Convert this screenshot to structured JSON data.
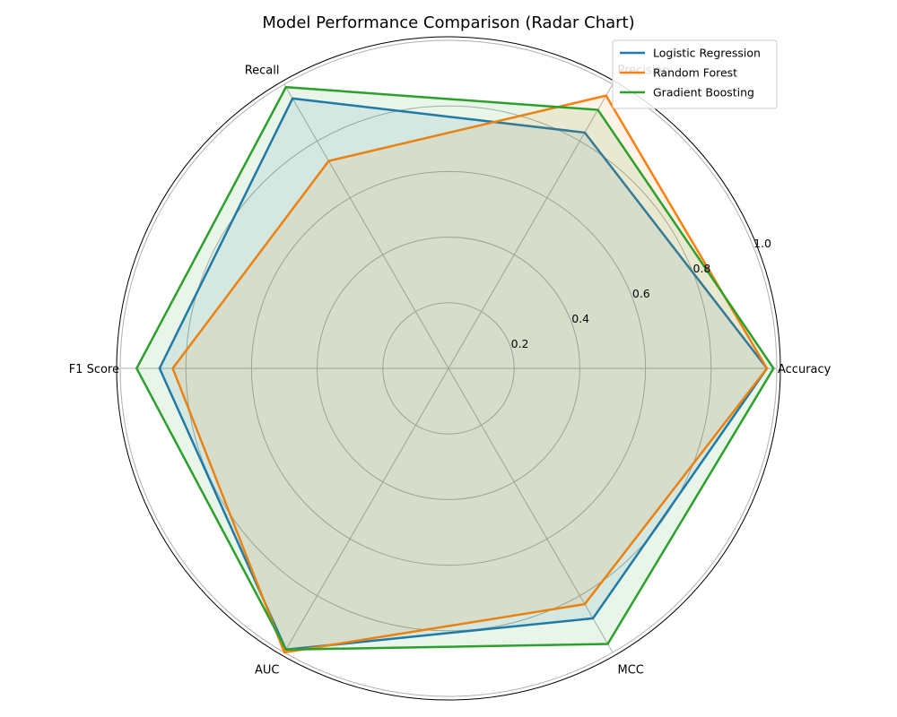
{
  "chart_data": {
    "type": "radar",
    "title": "Model Performance Comparison (Radar Chart)",
    "axes": [
      "Accuracy",
      "Precision",
      "Recall",
      "F1 Score",
      "AUC",
      "MCC"
    ],
    "rlim": [
      0,
      1.0
    ],
    "rticks": [
      0.2,
      0.4,
      0.6,
      0.8,
      1.0
    ],
    "rtick_labels": [
      "0.2",
      "0.4",
      "0.6",
      "0.8",
      "1.0"
    ],
    "grid": true,
    "legend_position": "top-right",
    "series": [
      {
        "name": "Logistic Regression",
        "color": "#1f77b4",
        "values": [
          0.97,
          0.83,
          0.95,
          0.88,
          0.99,
          0.88
        ]
      },
      {
        "name": "Random Forest",
        "color": "#ff7f0e",
        "values": [
          0.97,
          0.96,
          0.73,
          0.84,
          1.0,
          0.83
        ]
      },
      {
        "name": "Gradient Boosting",
        "color": "#2ca02c",
        "values": [
          0.99,
          0.91,
          0.99,
          0.95,
          0.99,
          0.97
        ]
      }
    ]
  }
}
